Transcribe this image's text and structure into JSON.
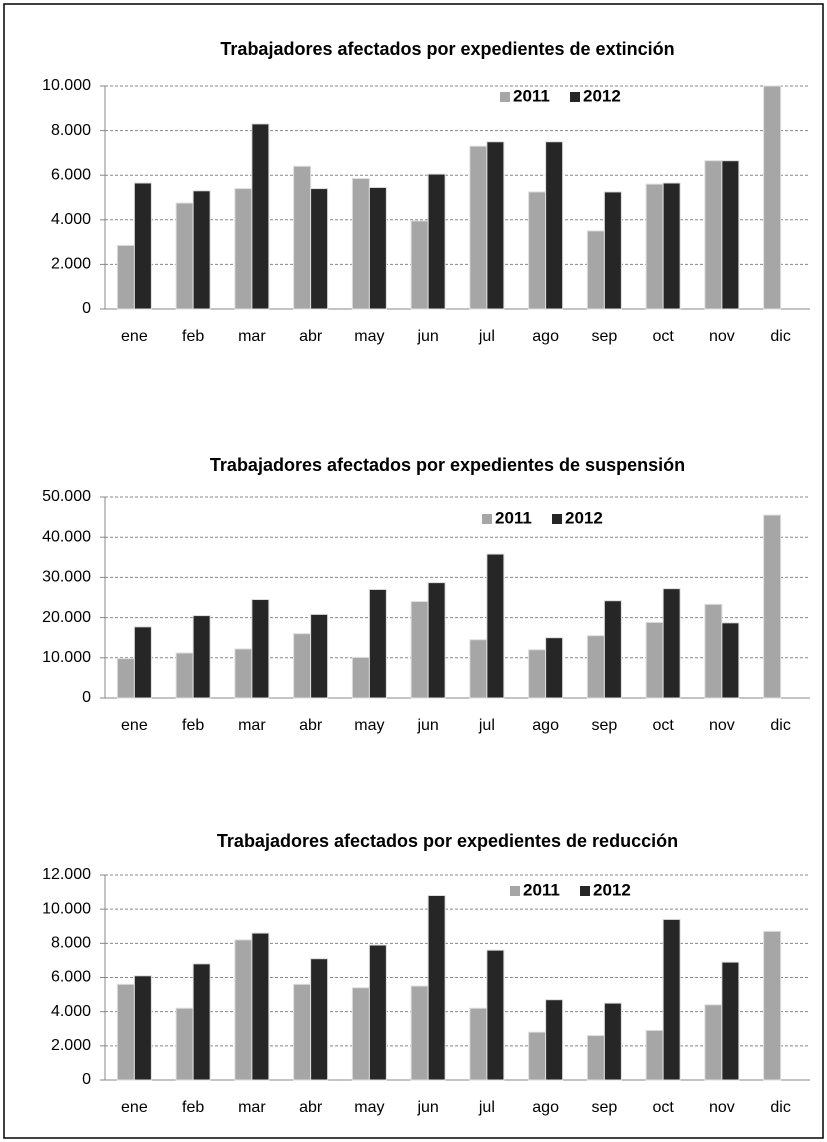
{
  "chart_data": [
    {
      "type": "bar",
      "title": "Trabajadores afectados por expedientes de extinción",
      "categories": [
        "ene",
        "feb",
        "mar",
        "abr",
        "may",
        "jun",
        "jul",
        "ago",
        "sep",
        "oct",
        "nov",
        "dic"
      ],
      "series": [
        {
          "name": "2011",
          "color": "#a6a6a6",
          "values": [
            2850,
            4750,
            5400,
            6400,
            5850,
            3950,
            7300,
            5250,
            3500,
            5600,
            6650,
            10000
          ]
        },
        {
          "name": "2012",
          "color": "#262626",
          "values": [
            5650,
            5300,
            8300,
            5400,
            5450,
            6050,
            7500,
            7500,
            5250,
            5650,
            6650,
            null
          ]
        }
      ],
      "ylim": [
        0,
        10000
      ],
      "yticks": [
        0,
        {
          "value": 2000,
          "label": "2.000"
        },
        {
          "value": 4000,
          "label": "4.000"
        },
        {
          "value": 6000,
          "label": "6.000"
        },
        {
          "value": 8000,
          "label": "8.000"
        },
        {
          "value": 10000,
          "label": "10.000"
        }
      ],
      "grid": true
    },
    {
      "type": "bar",
      "title": "Trabajadores afectados por expedientes de suspensión",
      "categories": [
        "ene",
        "feb",
        "mar",
        "abr",
        "may",
        "jun",
        "jul",
        "ago",
        "sep",
        "oct",
        "nov",
        "dic"
      ],
      "series": [
        {
          "name": "2011",
          "color": "#a6a6a6",
          "values": [
            9800,
            11200,
            12200,
            16000,
            10100,
            24000,
            14500,
            12000,
            15500,
            18800,
            23300,
            45500
          ]
        },
        {
          "name": "2012",
          "color": "#262626",
          "values": [
            17700,
            20500,
            24500,
            20800,
            27000,
            28700,
            35800,
            15000,
            24200,
            27200,
            18700,
            null
          ]
        }
      ],
      "ylim": [
        0,
        50000
      ],
      "yticks": [
        0,
        {
          "value": 10000,
          "label": "10.000"
        },
        {
          "value": 20000,
          "label": "20.000"
        },
        {
          "value": 30000,
          "label": "30.000"
        },
        {
          "value": 40000,
          "label": "40.000"
        },
        {
          "value": 50000,
          "label": "50.000"
        }
      ],
      "grid": true
    },
    {
      "type": "bar",
      "title": "Trabajadores afectados por expedientes de reducción",
      "categories": [
        "ene",
        "feb",
        "mar",
        "abr",
        "may",
        "jun",
        "jul",
        "ago",
        "sep",
        "oct",
        "nov",
        "dic"
      ],
      "series": [
        {
          "name": "2011",
          "color": "#a6a6a6",
          "values": [
            5600,
            4200,
            8200,
            5600,
            5400,
            5500,
            4200,
            2800,
            2600,
            2900,
            4400,
            8700
          ]
        },
        {
          "name": "2012",
          "color": "#262626",
          "values": [
            6100,
            6800,
            8600,
            7100,
            7900,
            10800,
            7600,
            4700,
            4500,
            9400,
            6900,
            null
          ]
        }
      ],
      "ylim": [
        0,
        12000
      ],
      "yticks": [
        0,
        {
          "value": 2000,
          "label": "2.000"
        },
        {
          "value": 4000,
          "label": "4.000"
        },
        {
          "value": 6000,
          "label": "6.000"
        },
        {
          "value": 8000,
          "label": "8.000"
        },
        {
          "value": 10000,
          "label": "10.000"
        },
        {
          "value": 12000,
          "label": "12.000"
        }
      ],
      "grid": true
    }
  ]
}
